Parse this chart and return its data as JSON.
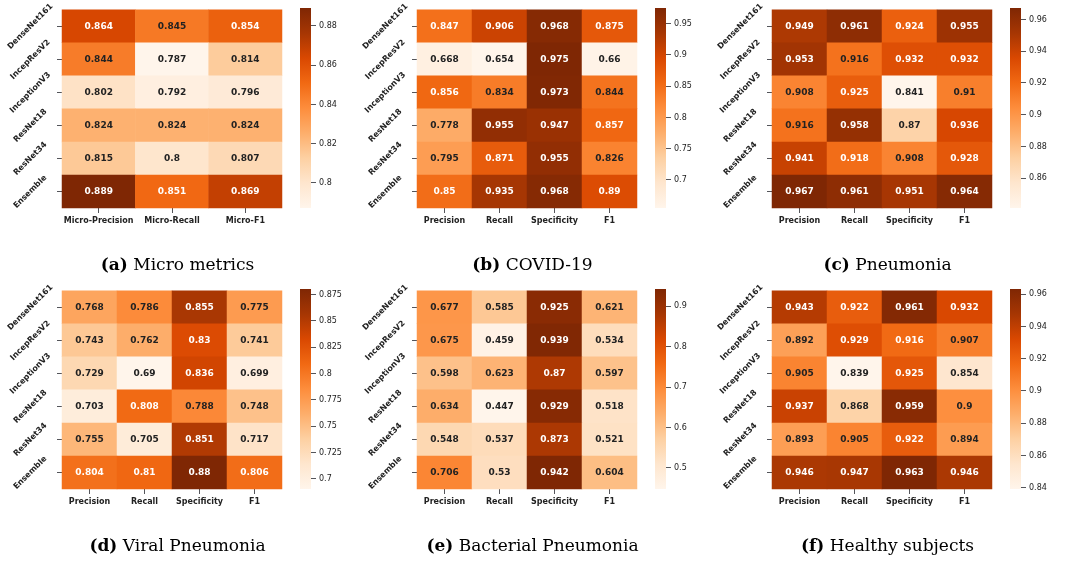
{
  "chart_data": [
    {
      "type": "heatmap",
      "title": "(a) Micro metrics",
      "categories": [
        "Micro-Precision",
        "Micro-Recall",
        "Micro-F1"
      ],
      "y_categories": [
        "DenseNet161",
        "IncepResV2",
        "InceptionV3",
        "ResNet18",
        "ResNet34",
        "Ensemble"
      ],
      "cells": [
        [
          0.864,
          0.845,
          0.854
        ],
        [
          0.844,
          0.787,
          0.814
        ],
        [
          0.802,
          0.792,
          0.796
        ],
        [
          0.824,
          0.824,
          0.824
        ],
        [
          0.815,
          0.8,
          0.807
        ],
        [
          0.889,
          0.851,
          0.869
        ]
      ],
      "clim": [
        0.787,
        0.889
      ],
      "cticks": [
        0.8,
        0.82,
        0.84,
        0.86,
        0.88
      ],
      "data_labels": true
    },
    {
      "type": "heatmap",
      "title": "(b) COVID-19",
      "categories": [
        "Precision",
        "Recall",
        "Specificity",
        "F1"
      ],
      "y_categories": [
        "DenseNet161",
        "IncepResV2",
        "InceptionV3",
        "ResNet18",
        "ResNet34",
        "Ensemble"
      ],
      "cells": [
        [
          0.847,
          0.906,
          0.968,
          0.875
        ],
        [
          0.668,
          0.654,
          0.975,
          0.66
        ],
        [
          0.856,
          0.834,
          0.973,
          0.844
        ],
        [
          0.778,
          0.955,
          0.947,
          0.857
        ],
        [
          0.795,
          0.871,
          0.955,
          0.826
        ],
        [
          0.85,
          0.935,
          0.968,
          0.89
        ]
      ],
      "clim": [
        0.654,
        0.975
      ],
      "cticks": [
        0.7,
        0.75,
        0.8,
        0.85,
        0.9,
        0.95
      ],
      "data_labels": true
    },
    {
      "type": "heatmap",
      "title": "(c) Pneumonia",
      "categories": [
        "Precision",
        "Recall",
        "Specificity",
        "F1"
      ],
      "y_categories": [
        "DenseNet161",
        "IncepResV2",
        "InceptionV3",
        "ResNet18",
        "ResNet34",
        "Ensemble"
      ],
      "cells": [
        [
          0.949,
          0.961,
          0.924,
          0.955
        ],
        [
          0.953,
          0.916,
          0.932,
          0.932
        ],
        [
          0.908,
          0.925,
          0.841,
          0.91
        ],
        [
          0.916,
          0.958,
          0.87,
          0.936
        ],
        [
          0.941,
          0.918,
          0.908,
          0.928
        ],
        [
          0.967,
          0.961,
          0.951,
          0.964
        ]
      ],
      "clim": [
        0.841,
        0.967
      ],
      "cticks": [
        0.86,
        0.88,
        0.9,
        0.92,
        0.94,
        0.96
      ],
      "data_labels": true
    },
    {
      "type": "heatmap",
      "title": "(d) Viral Pneumonia",
      "categories": [
        "Precision",
        "Recall",
        "Specificity",
        "F1"
      ],
      "y_categories": [
        "DenseNet161",
        "IncepResV2",
        "InceptionV3",
        "ResNet18",
        "ResNet34",
        "Ensemble"
      ],
      "cells": [
        [
          0.768,
          0.786,
          0.855,
          0.775
        ],
        [
          0.743,
          0.762,
          0.83,
          0.741
        ],
        [
          0.729,
          0.69,
          0.836,
          0.699
        ],
        [
          0.703,
          0.808,
          0.788,
          0.748
        ],
        [
          0.755,
          0.705,
          0.851,
          0.717
        ],
        [
          0.804,
          0.81,
          0.88,
          0.806
        ]
      ],
      "clim": [
        0.69,
        0.88
      ],
      "cticks": [
        0.7,
        0.725,
        0.75,
        0.775,
        0.8,
        0.825,
        0.85,
        0.875
      ],
      "data_labels": true
    },
    {
      "type": "heatmap",
      "title": "(e) Bacterial Pneumonia",
      "categories": [
        "Precision",
        "Recall",
        "Specificity",
        "F1"
      ],
      "y_categories": [
        "DenseNet161",
        "IncepResV2",
        "InceptionV3",
        "ResNet18",
        "ResNet34",
        "Ensemble"
      ],
      "cells": [
        [
          0.677,
          0.585,
          0.925,
          0.621
        ],
        [
          0.675,
          0.459,
          0.939,
          0.534
        ],
        [
          0.598,
          0.623,
          0.87,
          0.597
        ],
        [
          0.634,
          0.447,
          0.929,
          0.518
        ],
        [
          0.548,
          0.537,
          0.873,
          0.521
        ],
        [
          0.706,
          0.53,
          0.942,
          0.604
        ]
      ],
      "clim": [
        0.447,
        0.942
      ],
      "cticks": [
        0.5,
        0.6,
        0.7,
        0.8,
        0.9
      ],
      "data_labels": true
    },
    {
      "type": "heatmap",
      "title": "(f) Healthy subjects",
      "categories": [
        "Precision",
        "Recall",
        "Specificity",
        "F1"
      ],
      "y_categories": [
        "DenseNet161",
        "IncepResV2",
        "InceptionV3",
        "ResNet18",
        "ResNet34",
        "Ensemble"
      ],
      "cells": [
        [
          0.943,
          0.922,
          0.961,
          0.932
        ],
        [
          0.892,
          0.929,
          0.916,
          0.907
        ],
        [
          0.905,
          0.839,
          0.925,
          0.854
        ],
        [
          0.937,
          0.868,
          0.959,
          0.9
        ],
        [
          0.893,
          0.905,
          0.922,
          0.894
        ],
        [
          0.946,
          0.947,
          0.963,
          0.946
        ]
      ],
      "clim": [
        0.839,
        0.963
      ],
      "cticks": [
        0.84,
        0.86,
        0.88,
        0.9,
        0.92,
        0.94,
        0.96
      ],
      "data_labels": true
    }
  ]
}
